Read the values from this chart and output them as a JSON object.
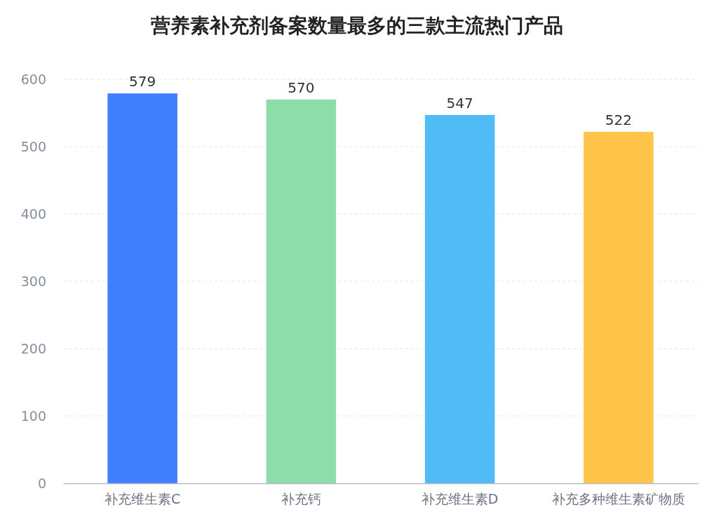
{
  "chart_data": {
    "type": "bar",
    "title": "营养素补充剂备案数量最多的三款主流热门产品",
    "categories": [
      "补充维生素C",
      "补充钙",
      "补充维生素D",
      "补充多种维生素矿物质"
    ],
    "values": [
      579,
      570,
      547,
      522
    ],
    "colors": [
      "#4080ff",
      "#8ddcaa",
      "#50bbf5",
      "#ffc54a"
    ],
    "ylim": [
      0,
      600
    ],
    "yticks": [
      0,
      100,
      200,
      300,
      400,
      500,
      600
    ],
    "grid": "y",
    "data_labels": true
  }
}
